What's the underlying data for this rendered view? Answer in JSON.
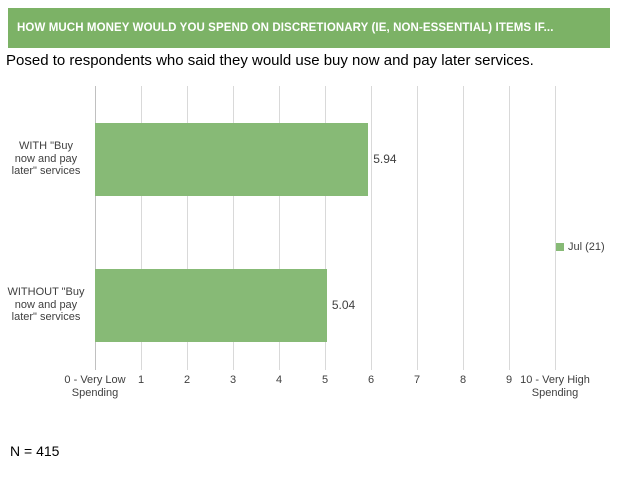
{
  "header": {
    "title": "HOW MUCH MONEY WOULD YOU SPEND ON DISCRETIONARY (IE, NON-ESSENTIAL) ITEMS IF..."
  },
  "subtitle": "Posed to respondents who said they would use buy now and pay later services.",
  "footnote": "N = 415",
  "legend": {
    "label": "Jul (21)"
  },
  "colors": {
    "header_bg": "#7cb266",
    "bar_fill": "#87ba76",
    "gridline": "#d9d9d9",
    "axis_line": "#c0c0c0",
    "text": "#3f3f3f"
  },
  "chart_data": {
    "type": "bar",
    "orientation": "horizontal",
    "title": "HOW MUCH MONEY WOULD YOU SPEND ON DISCRETIONARY (IE, NON-ESSENTIAL) ITEMS IF...",
    "subtitle": "Posed to respondents who said they would use buy now and pay later services.",
    "categories": [
      "WITH \"Buy now and pay later\" services",
      "WITHOUT \"Buy now and pay later\" services"
    ],
    "categories_wrapped": [
      "WITH \"Buy\nnow and pay\nlater\" services",
      "WITHOUT \"Buy\nnow and pay\nlater\" services"
    ],
    "series": [
      {
        "name": "Jul (21)",
        "values": [
          5.94,
          5.04
        ]
      }
    ],
    "data_labels": [
      "5.94",
      "5.04"
    ],
    "xlim": [
      0,
      10
    ],
    "tick_labels": [
      "0 - Very Low\nSpending",
      "1",
      "2",
      "3",
      "4",
      "5",
      "6",
      "7",
      "8",
      "9",
      "10 - Very High\nSpending"
    ],
    "grid": true,
    "legend_position": "right",
    "sample_size_note": "N = 415"
  }
}
